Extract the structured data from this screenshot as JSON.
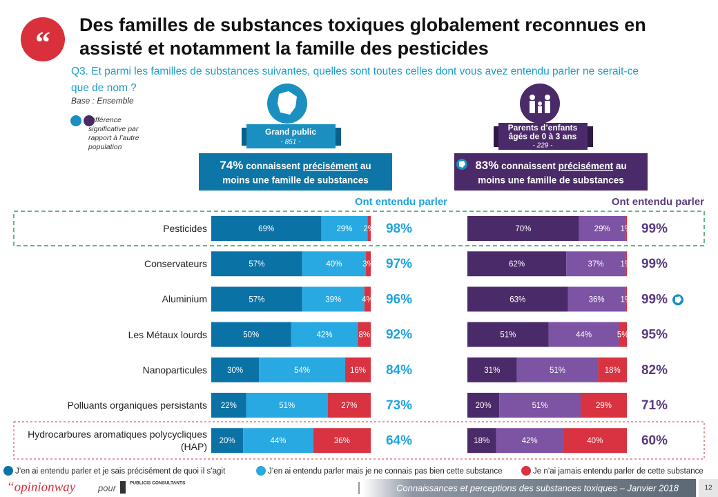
{
  "header": {
    "title_lines": [
      "Des familles de substances toxiques globalement reconnues en",
      "assisté et notamment la famille des pesticides"
    ],
    "question_lines": [
      "Q3. Et parmi les familles de substances suivantes, quelles sont toutes celles dont vous avez entendu parler ne serait-ce",
      "que de nom ?"
    ],
    "base": "Base : Ensemble",
    "note": "Différence significative par rapport à l’autre population"
  },
  "chart_data": [
    {
      "type": "bar",
      "title": "Grand public",
      "subtitle": "- 851 -",
      "summary": {
        "lead": "74%",
        "text": " connaissent ",
        "emph": "précisément",
        "text2": " au",
        "line2": "moins une famille de substances"
      },
      "total_label": "Ont entendu parler",
      "categories": [
        "Pesticides",
        "Conservateurs",
        "Aluminium",
        "Les Métaux lourds",
        "Nanoparticules",
        "Polluants organiques persistants",
        "Hydrocarbures aromatiques polycycliques (HAP)"
      ],
      "xlim": [
        0,
        100
      ],
      "series": [
        {
          "name": "J’en ai entendu parler et je sais précisément de quoi il s’agit",
          "color": "#0b72a6",
          "values": [
            69,
            57,
            57,
            50,
            30,
            22,
            20
          ],
          "value_labels": [
            "69%",
            "57%",
            "57%",
            "50%",
            "30%",
            "22%",
            "20%"
          ]
        },
        {
          "name": "J’en ai entendu parler mais je ne connais pas bien cette substance",
          "color": "#29a9e1",
          "values": [
            29,
            40,
            39,
            42,
            54,
            51,
            44
          ],
          "value_labels": [
            "29%",
            "40%",
            "39%",
            "42%",
            "54%",
            "51%",
            "44%"
          ]
        },
        {
          "name": "Je n’ai jamais entendu parler de cette substance",
          "color": "#d93240",
          "values": [
            2,
            3,
            4,
            8,
            16,
            27,
            36
          ],
          "value_labels": [
            "2%",
            "3%",
            "4%",
            "8%",
            "16%",
            "27%",
            "36%"
          ]
        }
      ],
      "totals": [
        98,
        97,
        96,
        92,
        84,
        73,
        64
      ],
      "total_labels": [
        "98%",
        "97%",
        "96%",
        "92%",
        "84%",
        "73%",
        "64%"
      ],
      "total_color": "#1fa3de"
    },
    {
      "type": "bar",
      "title": [
        "Parents d’enfants",
        "âgés de 0 à 3 ans"
      ],
      "subtitle": "- 229 -",
      "summary": {
        "lead": "83%",
        "text": " connaissent ",
        "emph": "précisément",
        "text2": " au",
        "line2": "moins une famille de substances"
      },
      "summary_significant": true,
      "total_label": "Ont entendu parler",
      "xlim": [
        0,
        100
      ],
      "series": [
        {
          "color": "#4a2a68",
          "values": [
            70,
            62,
            63,
            51,
            31,
            20,
            18
          ],
          "value_labels": [
            "70%",
            "62%",
            "63%",
            "51%",
            "31%",
            "20%",
            "18%"
          ]
        },
        {
          "color": "#7d53a3",
          "values": [
            29,
            37,
            36,
            44,
            51,
            51,
            42
          ],
          "value_labels": [
            "29%",
            "37%",
            "36%",
            "44%",
            "51%",
            "51%",
            "42%"
          ]
        },
        {
          "color": "#d93240",
          "values": [
            1,
            1,
            1,
            5,
            18,
            29,
            40
          ],
          "value_labels": [
            "1%",
            "1%",
            "1%",
            "5%",
            "18%",
            "29%",
            "40%"
          ]
        }
      ],
      "totals": [
        99,
        99,
        99,
        95,
        82,
        71,
        60
      ],
      "total_labels": [
        "99%",
        "99%",
        "99%",
        "95%",
        "82%",
        "71%",
        "60%"
      ],
      "significant": [
        false,
        false,
        true,
        false,
        false,
        false,
        false
      ],
      "total_color": "#5a3a7f"
    }
  ],
  "footer": {
    "brand": "“opinionway",
    "pour": "pour",
    "client": "PUBLICIS CONSULTANTS",
    "caption": "Connaissances et perceptions des substances toxiques – Janvier 2018",
    "page": "12"
  }
}
